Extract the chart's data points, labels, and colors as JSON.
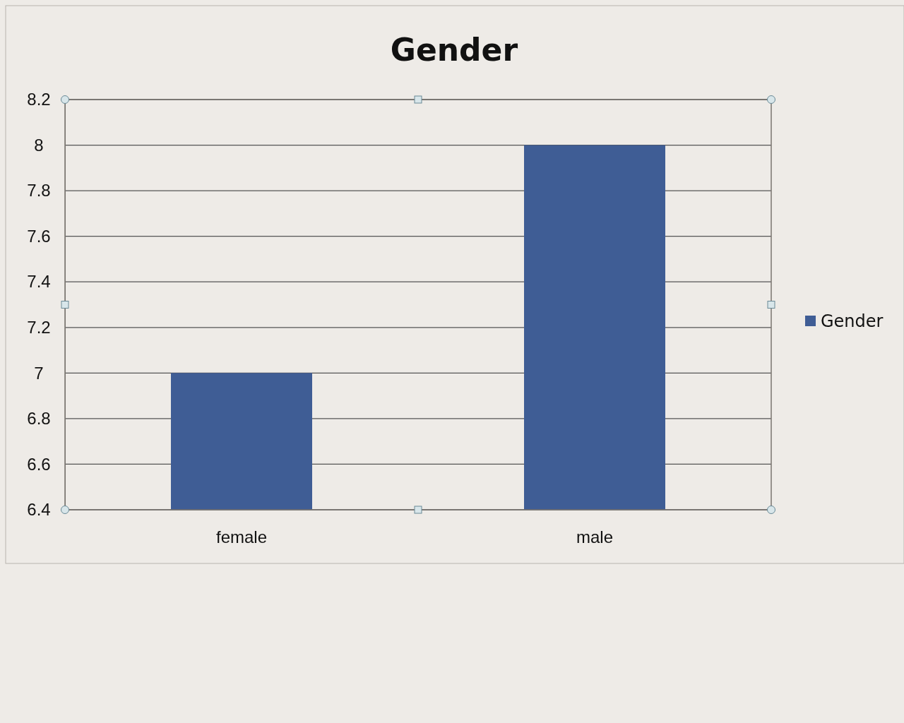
{
  "chart_data": {
    "type": "bar",
    "title": "Gender",
    "categories": [
      "female",
      "male"
    ],
    "series": [
      {
        "name": "Gender",
        "color": "#3f5d95",
        "values": [
          7,
          8
        ]
      }
    ],
    "ylim": [
      6.4,
      8.2
    ],
    "yticks": [
      6.4,
      6.6,
      6.8,
      7,
      7.2,
      7.4,
      7.6,
      7.8,
      8,
      8.2
    ],
    "grid": "y",
    "legend": "right"
  }
}
